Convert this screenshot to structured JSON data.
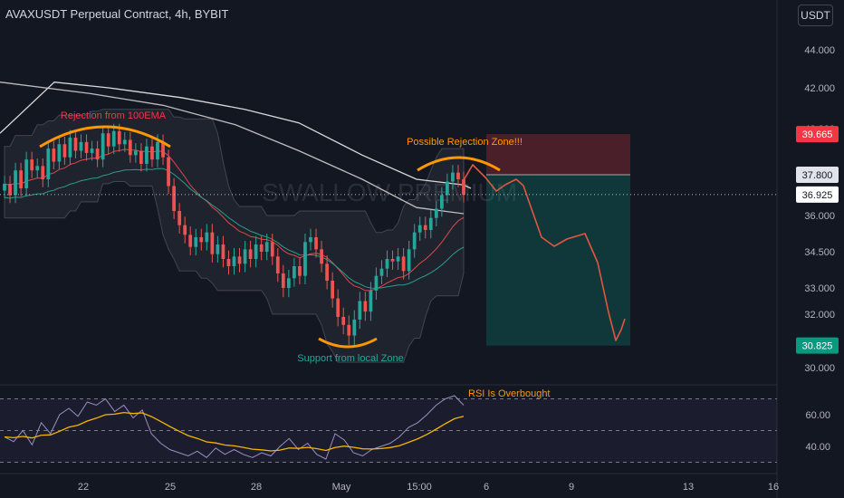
{
  "header": {
    "title": "AVAXUSDT Perpetual Contract, 4h, BYBIT",
    "currency": "USDT"
  },
  "colors": {
    "background": "#131722",
    "up": "#26a69a",
    "down": "#ef5350",
    "ema_long": "#d9d9d9",
    "ema_mid": "#e04848",
    "ema_fast": "#2a9d8f",
    "annotation_orange": "#ff9800",
    "annotation_red": "#f23645",
    "annotation_green": "#26a69a",
    "projection": "#e0573f",
    "rsi_line": "#9b8fc0",
    "rsi_ma": "#f5b400"
  },
  "chart_data": [
    {
      "type": "candlestick",
      "symbol": "AVAXUSDT Perpetual Contract",
      "timeframe": "4h",
      "exchange": "BYBIT",
      "watermark": "SWALLOW PREMIUM",
      "y_ticks": [
        "44.000",
        "42.000",
        "40.000",
        "37.800",
        "36.000",
        "34.500",
        "33.000",
        "32.000",
        "30.000"
      ],
      "x_ticks": [
        "22",
        "25",
        "28",
        "May",
        "15:00",
        "6",
        "9",
        "13",
        "16"
      ],
      "ylim": [
        29.5,
        45.5
      ],
      "close_series": [
        37.4,
        36.9,
        38.0,
        37.2,
        38.5,
        38.0,
        38.2,
        37.6,
        39.0,
        38.4,
        39.2,
        38.6,
        39.5,
        38.9,
        39.3,
        38.8,
        39.0,
        38.5,
        39.7,
        39.1,
        39.8,
        39.2,
        39.4,
        38.7,
        38.9,
        38.3,
        39.1,
        38.5,
        39.3,
        38.6,
        37.3,
        36.2,
        35.6,
        35.2,
        34.7,
        35.1,
        34.9,
        35.3,
        34.4,
        34.8,
        34.2,
        33.9,
        34.3,
        34.0,
        34.6,
        34.2,
        34.8,
        34.5,
        34.9,
        34.3,
        33.6,
        33.0,
        33.4,
        33.9,
        33.5,
        34.9,
        35.1,
        34.6,
        34.0,
        33.3,
        32.6,
        31.9,
        31.6,
        31.2,
        31.8,
        32.5,
        32.1,
        32.9,
        33.5,
        33.8,
        34.2,
        34.1,
        34.3,
        33.7,
        34.6,
        35.3,
        35.6,
        35.4,
        35.9,
        36.3,
        36.9,
        37.5,
        37.9,
        37.6,
        36.925
      ],
      "levels": {
        "stop_loss": 39.665,
        "entry": 37.8,
        "current": 36.925,
        "target": 30.825
      },
      "level_labels": [
        "39.665",
        "37.800",
        "36.925",
        "30.825"
      ],
      "annotations": [
        {
          "text": "Rejection from 100EMA",
          "color": "red"
        },
        {
          "text": "Possible Rejection Zone!!!",
          "color": "orange"
        },
        {
          "text": "Support from local Zone",
          "color": "green"
        }
      ]
    },
    {
      "type": "line",
      "name": "RSI",
      "y_ticks": [
        "60.00",
        "40.00"
      ],
      "ylim": [
        30,
        80
      ],
      "rsi_values": [
        46,
        43,
        50,
        41,
        55,
        48,
        60,
        64,
        59,
        68,
        66,
        70,
        62,
        66,
        58,
        63,
        48,
        42,
        38,
        36,
        34,
        37,
        33,
        39,
        35,
        38,
        35,
        33,
        36,
        34,
        40,
        45,
        38,
        42,
        35,
        32,
        48,
        44,
        36,
        34,
        38,
        40,
        42,
        46,
        52,
        55,
        60,
        66,
        70,
        72,
        66
      ],
      "annotation": "RSI Is Overbought"
    }
  ]
}
